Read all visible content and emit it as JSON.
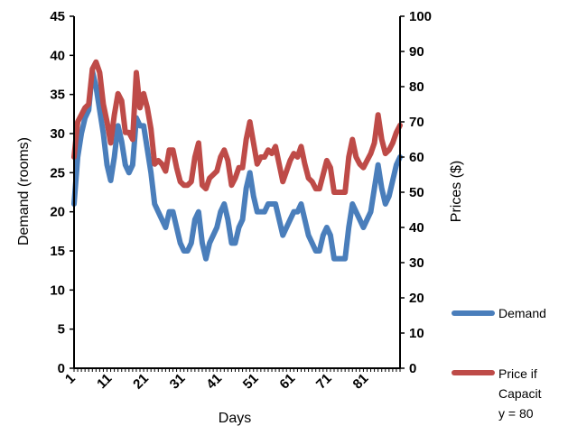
{
  "chart_data": {
    "type": "line",
    "xlabel": "Days",
    "ylabel": "Demand (rooms)",
    "y2label": "Prices ($)",
    "ylim": [
      0,
      45
    ],
    "y2lim": [
      0,
      100
    ],
    "xlim": [
      1,
      90
    ],
    "x_tick_labels": [
      "1",
      "11",
      "21",
      "31",
      "41",
      "51",
      "61",
      "71",
      "81"
    ],
    "y_ticks": [
      "0",
      "5",
      "10",
      "15",
      "20",
      "25",
      "30",
      "35",
      "40",
      "45"
    ],
    "y2_ticks": [
      "0",
      "10",
      "20",
      "30",
      "40",
      "50",
      "60",
      "70",
      "80",
      "90",
      "100"
    ],
    "legend_position": "right",
    "series": [
      {
        "name": "Demand",
        "axis": "left",
        "color": "#4a7ebb",
        "values": [
          21,
          27,
          30,
          32,
          33,
          38,
          36,
          33,
          30,
          26,
          24,
          27,
          31,
          29,
          26,
          25,
          26,
          32,
          31,
          31,
          28,
          25,
          21,
          20,
          19,
          18,
          20,
          20,
          18,
          16,
          15,
          15,
          16,
          19,
          20,
          16,
          14,
          16,
          17,
          18,
          20,
          21,
          19,
          16,
          16,
          18,
          19,
          23,
          25,
          22,
          20,
          20,
          20,
          21,
          21,
          21,
          19,
          17,
          18,
          19,
          20,
          20,
          21,
          19,
          17,
          16,
          15,
          15,
          17,
          18,
          17,
          14,
          14,
          14,
          14,
          18,
          21,
          20,
          19,
          18,
          19,
          20,
          23,
          26,
          23,
          21,
          22,
          24,
          26,
          27
        ]
      },
      {
        "name": "Price if Capacity = 80",
        "axis": "right",
        "color": "#be4b48",
        "values": [
          60,
          70,
          72,
          74,
          75,
          85,
          87,
          84,
          75,
          70,
          64,
          72,
          78,
          76,
          67,
          67,
          65,
          84,
          74,
          78,
          74,
          68,
          58,
          59,
          58,
          56,
          62,
          62,
          57,
          53,
          52,
          52,
          53,
          60,
          64,
          52,
          51,
          54,
          55,
          56,
          60,
          62,
          59,
          52,
          54,
          57,
          57,
          65,
          70,
          64,
          58,
          60,
          60,
          62,
          61,
          63,
          58,
          53,
          56,
          59,
          61,
          60,
          63,
          58,
          54,
          53,
          51,
          51,
          55,
          59,
          57,
          50,
          50,
          50,
          50,
          60,
          65,
          60,
          58,
          57,
          59,
          61,
          64,
          72,
          65,
          61,
          62,
          64,
          67,
          69
        ]
      }
    ]
  }
}
